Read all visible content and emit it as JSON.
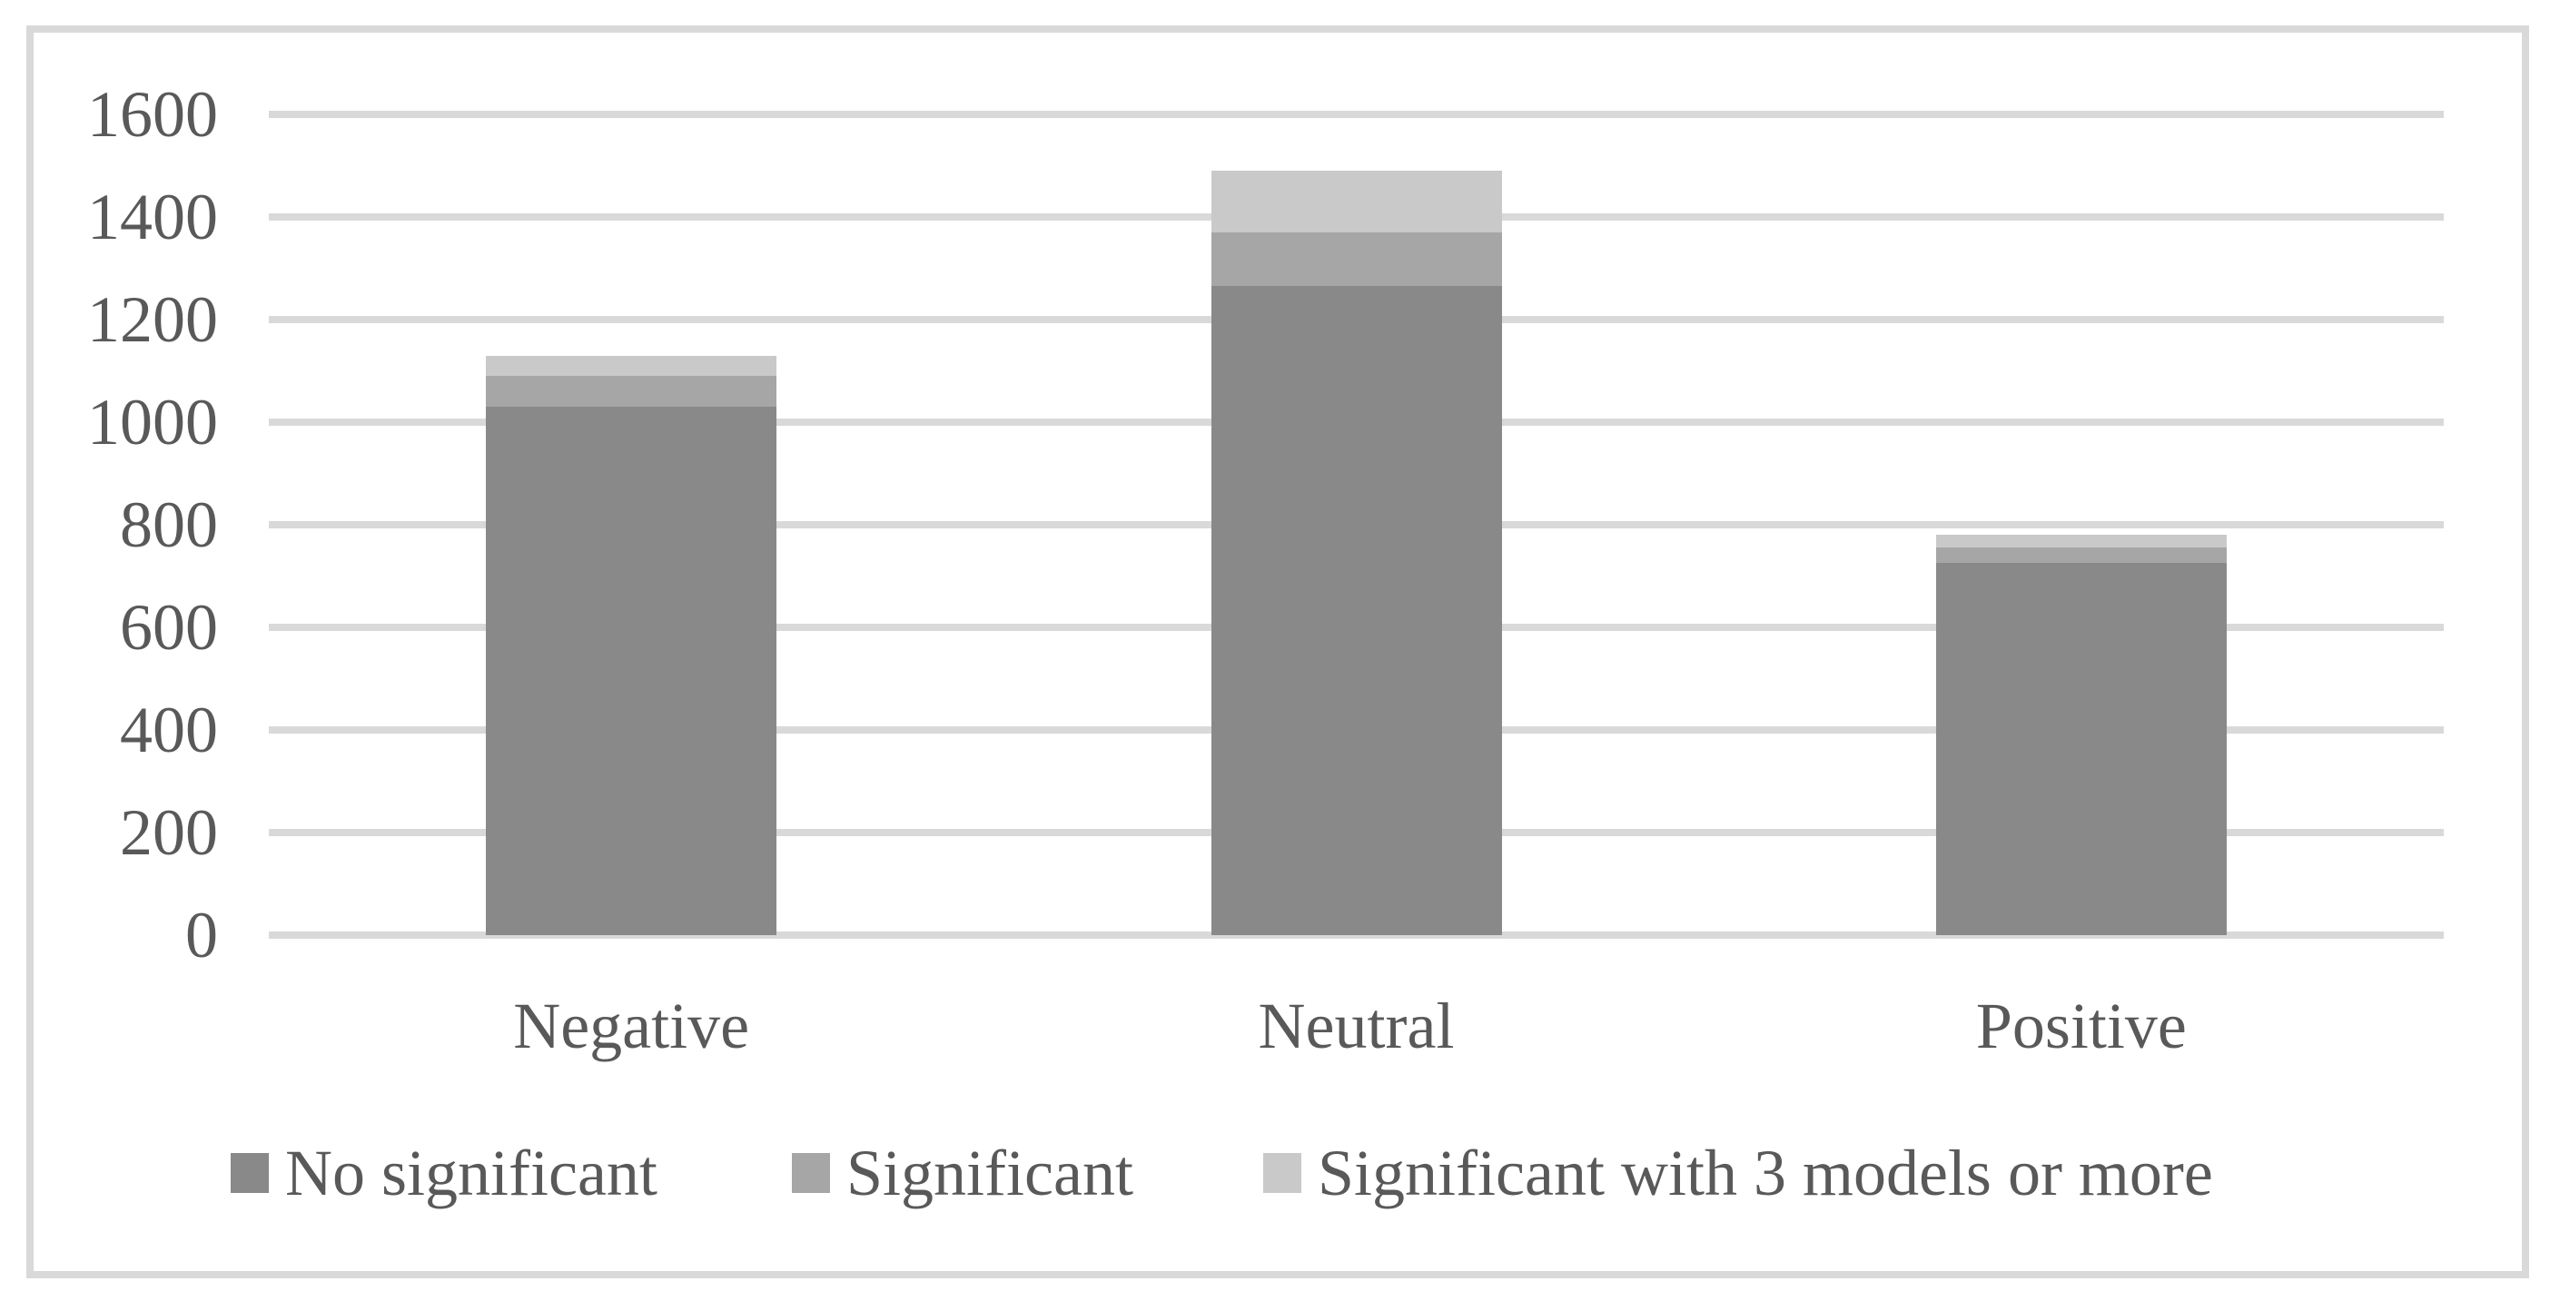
{
  "chart_data": {
    "type": "bar",
    "stacked": true,
    "title": "",
    "xlabel": "",
    "ylabel": "",
    "categories": [
      "Negative",
      "Neutral",
      "Positive"
    ],
    "series": [
      {
        "name": "No significant",
        "color": "#898989",
        "values": [
          1030,
          1265,
          725
        ]
      },
      {
        "name": "Significant",
        "color": "#a6a6a6",
        "values": [
          60,
          105,
          30
        ]
      },
      {
        "name": "Significant with 3 models or more",
        "color": "#c9c9c9",
        "values": [
          40,
          120,
          25
        ]
      }
    ],
    "stack_totals": [
      1130,
      1490,
      780
    ],
    "ylim": [
      0,
      1600
    ],
    "ytick_step": 200,
    "ytick_labels": [
      "0",
      "200",
      "400",
      "600",
      "800",
      "1000",
      "1200",
      "1400",
      "1600"
    ],
    "grid": true,
    "legend_position": "bottom",
    "colors": {
      "gridline": "#d9d9d9",
      "frame_border": "#d9d9d9",
      "text": "#595959",
      "background": "#ffffff"
    }
  }
}
